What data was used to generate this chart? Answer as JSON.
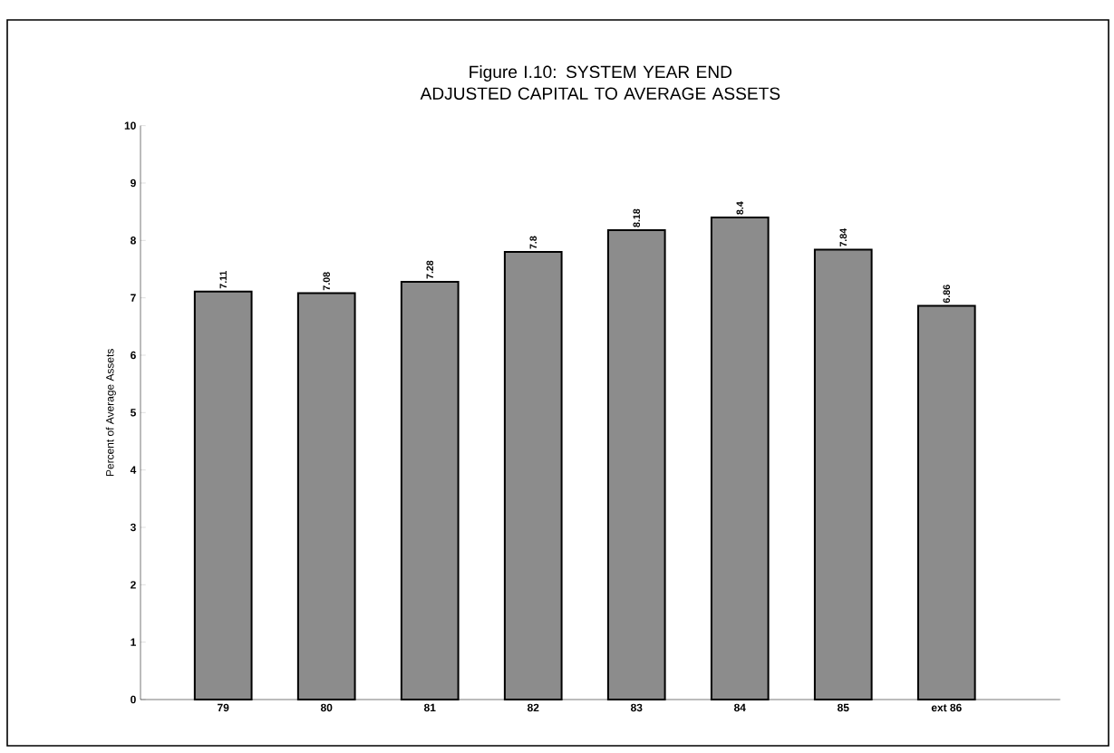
{
  "chart_data": {
    "type": "bar",
    "title": "Figure I.10:  SYSTEM YEAR END ADJUSTED CAPITAL TO AVERAGE ASSETS",
    "ylabel": "Percent of Average Assets",
    "categories": [
      "79",
      "80",
      "81",
      "82",
      "83",
      "84",
      "85",
      "ext 86"
    ],
    "values": [
      7.11,
      7.08,
      7.28,
      7.8,
      8.18,
      8.4,
      7.84,
      6.86
    ],
    "color": "#8c8c8c",
    "data_labels": true,
    "ylim": [
      0,
      10
    ],
    "yticks": [
      0,
      1,
      2,
      3,
      4,
      5,
      6,
      7,
      8,
      9,
      10
    ],
    "grid": false
  }
}
